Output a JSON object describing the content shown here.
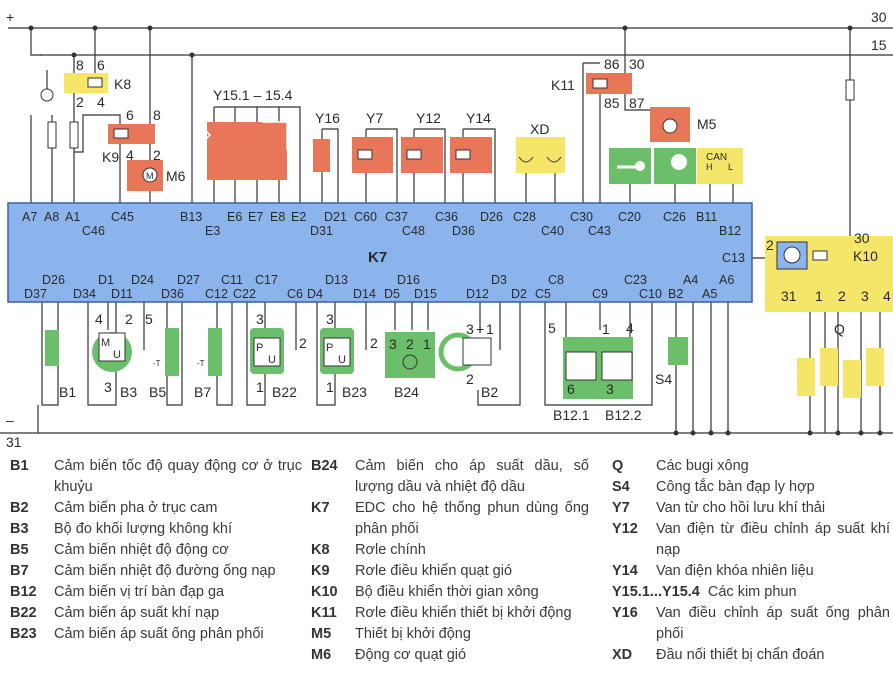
{
  "rails": {
    "plus": "+",
    "r30": "30",
    "r15": "15",
    "minus": "–",
    "r31": "31"
  },
  "colors": {
    "ecu": "#8cb4ec",
    "actuator": "#e8775a",
    "sensor": "#6cbf6a",
    "relay": "#f5e66a"
  },
  "ecu": {
    "name": "K7",
    "pins_top": [
      "A7",
      "A8",
      "A1",
      "C45",
      "B13",
      "E6",
      "E7",
      "E8",
      "E2",
      "D21",
      "C60",
      "C37",
      "C36",
      "D26",
      "C28",
      "C30",
      "C20",
      "C26",
      "B11"
    ],
    "pins_top2": [
      "C46",
      "E3",
      "D31",
      "C48",
      "D36",
      "C40",
      "C43",
      "B12"
    ],
    "pin_side": "C13",
    "pins_bot1": [
      "D26",
      "D1",
      "D24",
      "D27",
      "C11",
      "C17",
      "D13",
      "D16",
      "D3",
      "C8",
      "C23",
      "A4",
      "A6"
    ],
    "pins_bot2": [
      "D37",
      "D34",
      "D11",
      "D36",
      "C12",
      "C22",
      "C6",
      "D4",
      "D14",
      "D5",
      "D15",
      "D12",
      "D2",
      "C5",
      "C9",
      "C10",
      "B2",
      "A5"
    ]
  },
  "components": {
    "K8": {
      "name": "K8",
      "t1": "8",
      "t2": "6",
      "t3": "2",
      "t4": "4"
    },
    "K9": {
      "name": "K9",
      "t1": "6",
      "t2": "8",
      "t3": "4",
      "t4": "2"
    },
    "M6": "M6",
    "Y15": "Y15.1 – 15.4",
    "Y16": "Y16",
    "Y7": "Y7",
    "Y12": "Y12",
    "Y14": "Y14",
    "XD": "XD",
    "K11": {
      "name": "K11",
      "t1": "86",
      "t2": "30",
      "t3": "85",
      "t4": "87"
    },
    "M5": "M5",
    "motor_letter": "M",
    "CAN": {
      "title": "CAN",
      "h": "H",
      "l": "L"
    },
    "K10": {
      "name": "K10",
      "t30": "30",
      "t2": "2",
      "t31": "31",
      "o1": "1",
      "o2": "2",
      "o3": "3",
      "o4": "4"
    },
    "Q": "Q",
    "B1": "B1",
    "B3": {
      "name": "B3",
      "t4": "4",
      "t2": "2",
      "t5": "5",
      "t3": "3",
      "m": "M",
      "u": "U"
    },
    "B5": "B5",
    "B7": "B7",
    "T": "-T",
    "B22": {
      "name": "B22",
      "t3": "3",
      "t2": "2",
      "t1": "1",
      "p": "P",
      "u": "U"
    },
    "B23": {
      "name": "B23",
      "t3": "3",
      "t2": "2",
      "t1": "1",
      "p": "P",
      "u": "U"
    },
    "B24": {
      "name": "B24",
      "t3": "3",
      "t2": "2",
      "t1": "1"
    },
    "B2": {
      "name": "B2",
      "t3": "3",
      "plus": "+",
      "t1": "1",
      "t2": "2"
    },
    "B12": {
      "n1": "B12.1",
      "n2": "B12.2",
      "t5": "5",
      "t1": "1",
      "t4": "4",
      "t6": "6",
      "t3": "3"
    },
    "S4": "S4"
  },
  "legend": {
    "col1": [
      {
        "code": "B1",
        "desc": "Cảm biến tốc độ quay động cơ ở trục khuỷu"
      },
      {
        "code": "B2",
        "desc": "Cảm biến pha ở trục cam"
      },
      {
        "code": "B3",
        "desc": "Bộ đo khối lượng không khí"
      },
      {
        "code": "B5",
        "desc": "Cảm biến nhiệt độ động cơ"
      },
      {
        "code": "B7",
        "desc": "Cảm biến nhiệt độ đường ống nạp"
      },
      {
        "code": "B12",
        "desc": "Cảm biến vị trí bàn đạp ga"
      },
      {
        "code": "B22",
        "desc": "Cảm biến áp suất khí nạp"
      },
      {
        "code": "B23",
        "desc": "Cảm biến áp suất ống phân phối"
      }
    ],
    "col2": [
      {
        "code": "B24",
        "desc": "Cảm biến cho áp suất dầu, số lượng dầu và nhiệt độ dầu"
      },
      {
        "code": "K7",
        "desc": "EDC cho hệ thống phun dùng ống phân phối"
      },
      {
        "code": "K8",
        "desc": "Rơle chính"
      },
      {
        "code": "K9",
        "desc": "Rơle điều khiển quạt gió"
      },
      {
        "code": "K10",
        "desc": "Bộ điều khiển thời gian xông"
      },
      {
        "code": "K11",
        "desc": "Rơle điều khiển thiết bị khởi động"
      },
      {
        "code": "M5",
        "desc": "Thiết bị khởi động"
      },
      {
        "code": "M6",
        "desc": "Động cơ quạt gió"
      }
    ],
    "col3": [
      {
        "code": "Q",
        "desc": "Các bugi xông"
      },
      {
        "code": "S4",
        "desc": "Công tắc bàn đạp ly hợp"
      },
      {
        "code": "Y7",
        "desc": "Van từ cho hồi lưu khí thải"
      },
      {
        "code": "Y12",
        "desc": "Van điện từ điều chỉnh áp suất khí nạp"
      },
      {
        "code": "Y14",
        "desc": "Van điện khóa nhiên liệu"
      },
      {
        "code": "Y15.1...Y15.4",
        "desc": "Các kim phun"
      },
      {
        "code": "Y16",
        "desc": "Van điều chỉnh áp suất ống phân phối"
      },
      {
        "code": "XD",
        "desc": "Đầu nối thiết bị chẩn đoán"
      }
    ]
  }
}
